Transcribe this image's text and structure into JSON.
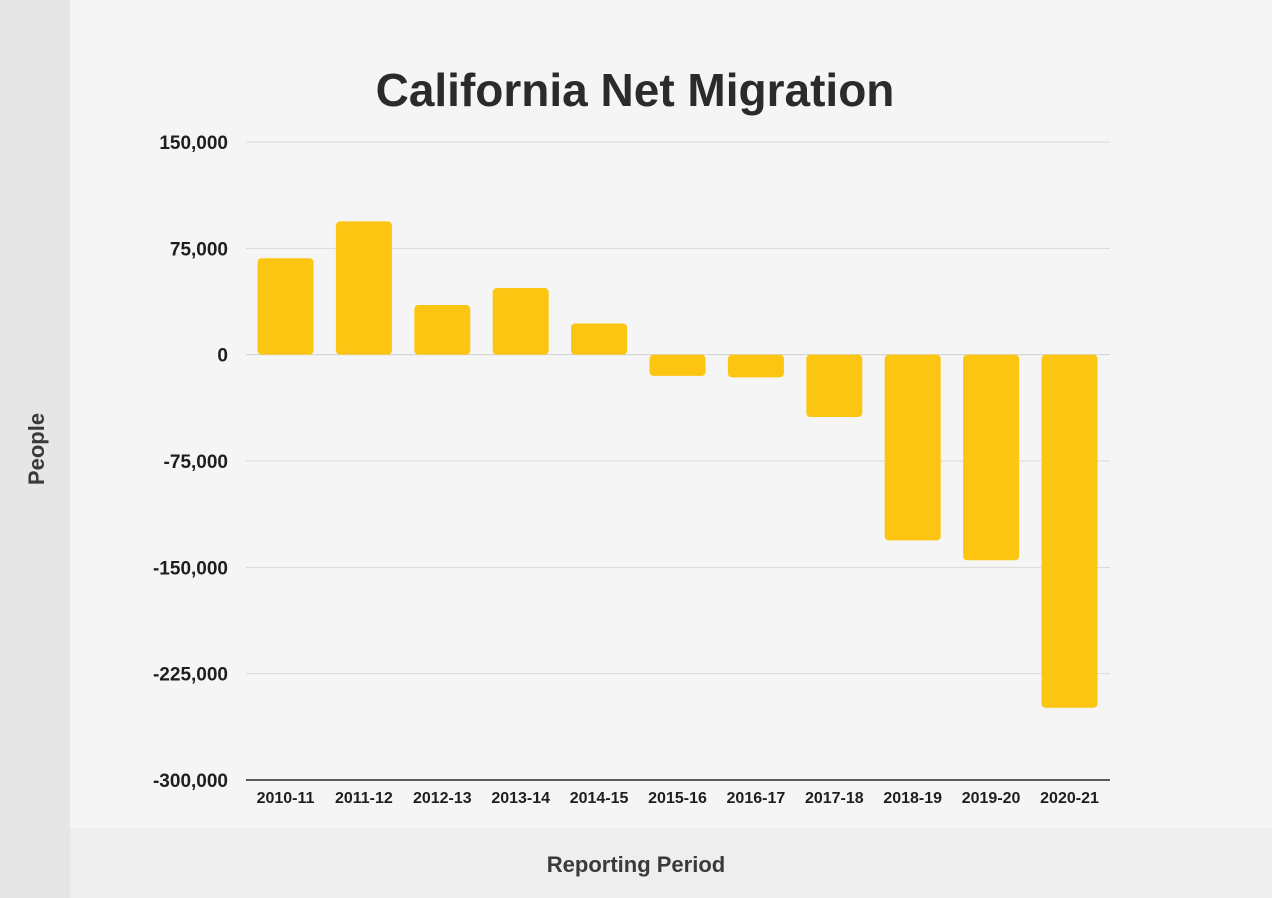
{
  "chart_data": {
    "type": "bar",
    "title": "California Net Migration",
    "xlabel": "Reporting Period",
    "ylabel": "People",
    "ylim": [
      -300000,
      150000
    ],
    "yticks": [
      150000,
      75000,
      0,
      -75000,
      -150000,
      -225000,
      -300000
    ],
    "ytick_labels": [
      "150,000",
      "75,000",
      "0",
      "-75,000",
      "-150,000",
      "-225,000",
      "-300,000"
    ],
    "categories": [
      "2010-11",
      "2011-12",
      "2012-13",
      "2013-14",
      "2014-15",
      "2015-16",
      "2016-17",
      "2017-18",
      "2018-19",
      "2019-20",
      "2020-21"
    ],
    "values": [
      68000,
      94000,
      35000,
      47000,
      22000,
      -15000,
      -16000,
      -44000,
      -131000,
      -145000,
      -249000
    ],
    "bar_color": "#fbc512",
    "grid": true
  }
}
